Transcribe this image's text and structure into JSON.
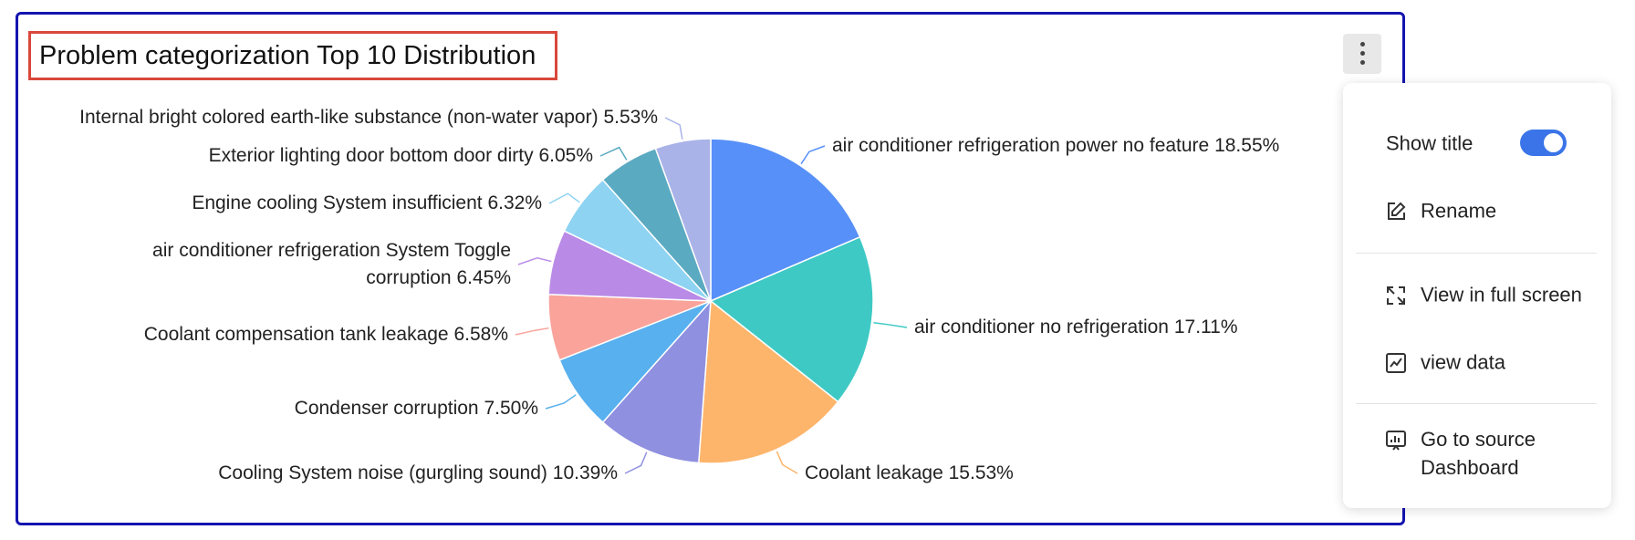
{
  "chart_data": {
    "type": "pie",
    "title": "Problem categorization Top 10 Distribution",
    "categories": [
      "air conditioner refrigeration power no feature",
      "air conditioner no refrigeration",
      "Coolant leakage",
      "Cooling System noise (gurgling sound)",
      "Condenser corruption",
      "Coolant compensation tank leakage",
      "air conditioner refrigeration System Toggle corruption",
      "Engine cooling System insufficient",
      "Exterior lighting door bottom door dirty",
      "Internal bright colored earth-like substance (non-water vapor)"
    ],
    "values": [
      18.55,
      17.11,
      15.53,
      10.39,
      7.5,
      6.58,
      6.45,
      6.32,
      6.05,
      5.53
    ],
    "value_labels": [
      "18.55%",
      "17.11%",
      "15.53%",
      "10.39%",
      "7.50%",
      "6.58%",
      "6.45%",
      "6.32%",
      "6.05%",
      "5.53%"
    ],
    "colors": [
      "#5790f8",
      "#3ec9c4",
      "#fdb56c",
      "#8f90e0",
      "#58b0ee",
      "#f9a39b",
      "#b98be6",
      "#8ed3f2",
      "#5aaac1",
      "#a9b3e8"
    ]
  },
  "menu": {
    "show_title": {
      "label": "Show title",
      "on": true
    },
    "items": [
      "Rename",
      "View in full screen",
      "view data",
      "Go to source Dashboard"
    ]
  }
}
